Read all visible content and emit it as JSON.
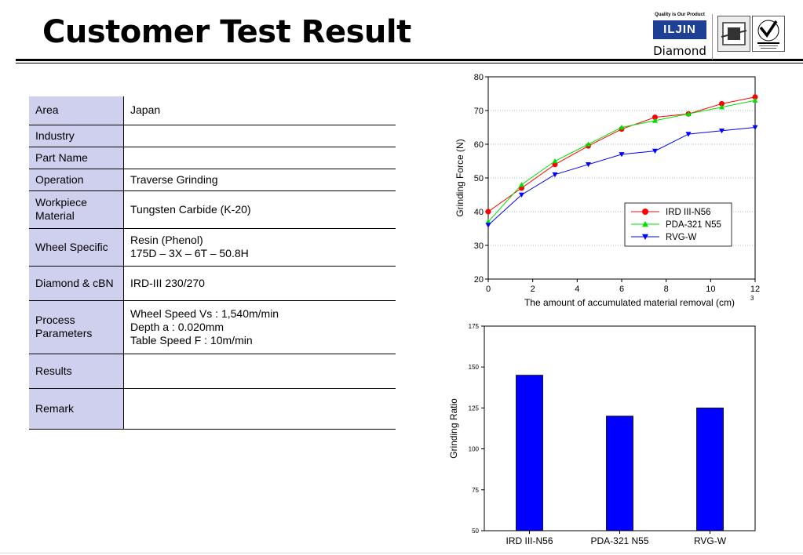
{
  "header": {
    "title": "Customer Test Result"
  },
  "logo": {
    "tagline": "Quality is Our Product",
    "brand": "ILJIN",
    "brand_sub": "Diamond"
  },
  "specs": [
    {
      "label": "Area",
      "value": [
        "Japan"
      ]
    },
    {
      "label": "Industry",
      "value": []
    },
    {
      "label": "Part Name",
      "value": []
    },
    {
      "label": "Operation",
      "value": [
        "Traverse Grinding"
      ]
    },
    {
      "label": "Workpiece Material",
      "value": [
        "Tungsten Carbide (K-20)"
      ]
    },
    {
      "label": "Wheel Specific",
      "value": [
        "Resin (Phenol)",
        "175D – 3X – 6T – 50.8H"
      ]
    },
    {
      "label": "Diamond & cBN",
      "value": [
        "IRD-III 230/270"
      ]
    },
    {
      "label": "Process Parameters",
      "value": [
        "Wheel Speed Vs : 1,540m/min",
        "Depth a : 0.020mm",
        "Table Speed F : 10m/min"
      ]
    },
    {
      "label": "Results",
      "value": []
    },
    {
      "label": "Remark",
      "value": []
    }
  ],
  "chart_data": [
    {
      "type": "line",
      "title": "",
      "xlabel": "The amount of accumulated material removal (cm)",
      "xlabel_superscript": "3",
      "ylabel": "Grinding Force (N)",
      "xlim": [
        0,
        12
      ],
      "ylim": [
        20,
        80
      ],
      "xticks": [
        0,
        2,
        4,
        6,
        8,
        10,
        12
      ],
      "yticks": [
        20,
        30,
        40,
        50,
        60,
        70,
        80
      ],
      "grid": true,
      "legend": "center-right",
      "x": [
        0,
        1.5,
        3,
        4.5,
        6,
        7.5,
        9,
        10.5,
        12
      ],
      "series": [
        {
          "name": "IRD III-N56",
          "color": "#ff0000",
          "marker": "circle",
          "values": [
            40,
            47,
            54,
            59.5,
            64.5,
            68,
            69,
            72,
            74
          ]
        },
        {
          "name": "PDA-321 N55",
          "color": "#00e000",
          "marker": "triangle-up",
          "values": [
            37,
            48,
            55,
            60,
            65,
            67,
            69,
            71,
            73
          ]
        },
        {
          "name": "RVG-W",
          "color": "#0000ff",
          "marker": "triangle-down",
          "values": [
            36,
            45,
            51,
            54,
            57,
            58,
            63,
            64,
            65
          ]
        }
      ]
    },
    {
      "type": "bar",
      "title": "",
      "xlabel": "",
      "ylabel": "Grinding Ratio",
      "ylim": [
        50,
        175
      ],
      "yticks": [
        50,
        75,
        100,
        125,
        150,
        175
      ],
      "color": "#0000ff",
      "categories": [
        "IRD III-N56",
        "PDA-321 N55",
        "RVG-W"
      ],
      "values": [
        145,
        120,
        125
      ]
    }
  ]
}
